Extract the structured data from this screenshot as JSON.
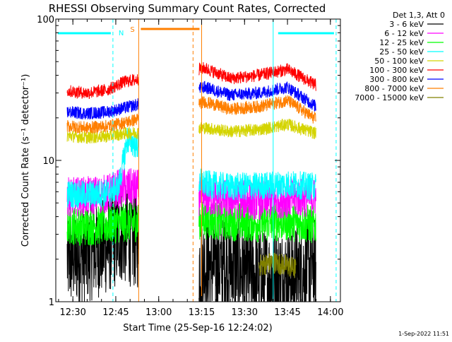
{
  "chart_data": {
    "type": "line",
    "title": "RHESSI Observing Summary Count Rates, Corrected",
    "xlabel": "Start Time (25-Sep-16 12:24:02)",
    "ylabel": "Corrected Count Rate (s⁻¹ detector⁻¹)",
    "y_scale": "log",
    "ylim": [
      1,
      100
    ],
    "xlim": [
      "12:24:02",
      "14:03:30"
    ],
    "x_ticks": [
      "12:30",
      "12:45",
      "13:00",
      "13:15",
      "13:30",
      "13:45",
      "14:00"
    ],
    "y_ticks": [
      "1",
      "10",
      "100"
    ],
    "footer": "1-Sep-2022 11:51",
    "legend": {
      "position": "top-right",
      "header": "Det 1,3, Att 0"
    },
    "observation_gap": [
      "12:53",
      "13:14"
    ],
    "series": [
      {
        "name": "3 - 6 keV",
        "color": "#000000",
        "x": [
          "12:28",
          "12:35",
          "12:42",
          "12:47",
          "13:16",
          "13:25",
          "13:35",
          "13:45",
          "13:55"
        ],
        "y": [
          2.0,
          2.2,
          2.5,
          3.0,
          1.8,
          1.8,
          1.5,
          1.5,
          1.8
        ]
      },
      {
        "name": "6 - 12 keV",
        "color": "#ff00ff",
        "x": [
          "12:28",
          "12:35",
          "12:42",
          "12:47",
          "13:16",
          "13:25",
          "13:35",
          "13:45",
          "13:55"
        ],
        "y": [
          5.5,
          5.6,
          5.8,
          6.5,
          5.5,
          5.3,
          5.2,
          5.4,
          5.5
        ]
      },
      {
        "name": "12 - 25 keV",
        "color": "#00ff00",
        "x": [
          "12:28",
          "12:35",
          "12:42",
          "12:47",
          "13:16",
          "13:25",
          "13:35",
          "13:45",
          "13:55"
        ],
        "y": [
          3.5,
          3.4,
          3.5,
          3.6,
          3.8,
          3.7,
          3.6,
          3.7,
          3.5
        ]
      },
      {
        "name": "25 - 50 keV",
        "color": "#00ffff",
        "x": [
          "12:28",
          "12:35",
          "12:42",
          "12:46",
          "12:49",
          "13:16",
          "13:25",
          "13:35",
          "13:45",
          "13:55"
        ],
        "y": [
          5.8,
          5.7,
          5.9,
          6.5,
          14.0,
          6.8,
          6.5,
          6.6,
          6.8,
          6.5
        ]
      },
      {
        "name": "50 - 100 keV",
        "color": "#d4d400",
        "x": [
          "12:28",
          "12:35",
          "12:42",
          "12:48",
          "13:16",
          "13:25",
          "13:35",
          "13:45",
          "13:55"
        ],
        "y": [
          15.0,
          14.5,
          14.8,
          15.5,
          17.0,
          16.0,
          16.5,
          18.0,
          15.5
        ]
      },
      {
        "name": "100 - 300 keV",
        "color": "#ff0000",
        "x": [
          "12:28",
          "12:35",
          "12:42",
          "12:48",
          "13:16",
          "13:25",
          "13:35",
          "13:45",
          "13:55"
        ],
        "y": [
          31.0,
          30.0,
          31.5,
          36.0,
          45.0,
          38.0,
          40.0,
          44.0,
          34.0
        ]
      },
      {
        "name": "300 - 800 keV",
        "color": "#0000ff",
        "x": [
          "12:28",
          "12:35",
          "12:42",
          "12:48",
          "13:16",
          "13:25",
          "13:35",
          "13:45",
          "13:55"
        ],
        "y": [
          22.0,
          21.5,
          22.0,
          23.5,
          33.0,
          29.0,
          30.0,
          33.0,
          24.0
        ]
      },
      {
        "name": "800 - 7000 keV",
        "color": "#ff7f00",
        "x": [
          "12:28",
          "12:35",
          "12:42",
          "12:48",
          "13:16",
          "13:25",
          "13:35",
          "13:45",
          "13:55"
        ],
        "y": [
          17.5,
          17.0,
          17.5,
          18.5,
          26.0,
          23.0,
          24.0,
          26.5,
          19.5
        ]
      },
      {
        "name": "7000 - 15000 keV",
        "color": "#808000",
        "x": [
          "13:35",
          "13:40",
          "13:45",
          "13:48"
        ],
        "y": [
          1.8,
          1.9,
          1.8,
          1.7
        ]
      }
    ],
    "flags": [
      {
        "label": "N",
        "color": "#00ffff",
        "intervals": [
          [
            "12:24",
            "12:44"
          ],
          [
            "13:41",
            "14:02"
          ]
        ]
      },
      {
        "label": "S",
        "color": "#ff7f00",
        "intervals": [
          [
            "12:53",
            "13:15"
          ]
        ]
      }
    ],
    "markers": [
      {
        "time": "12:44",
        "color": "#00ffff",
        "style": "dashed"
      },
      {
        "time": "13:40",
        "color": "#00ffff",
        "style": "solid"
      },
      {
        "time": "14:02",
        "color": "#00ffff",
        "style": "dashed"
      },
      {
        "time": "12:53",
        "color": "#ff7f00",
        "style": "solid"
      },
      {
        "time": "13:12",
        "color": "#ff7f00",
        "style": "dashed"
      },
      {
        "time": "13:15",
        "color": "#ff7f00",
        "style": "solid"
      }
    ]
  }
}
